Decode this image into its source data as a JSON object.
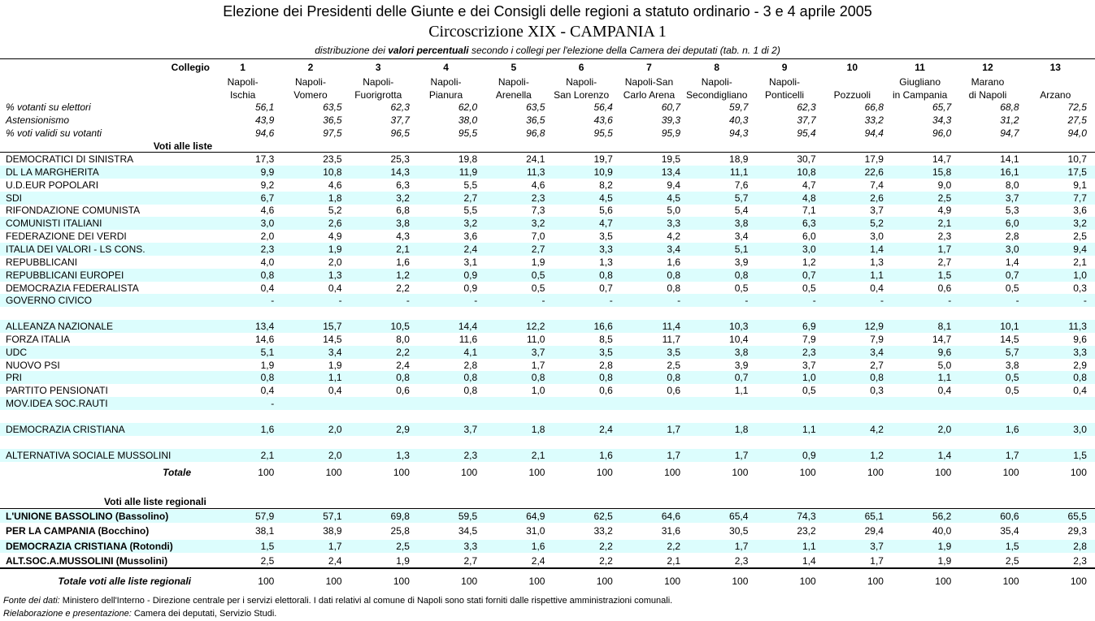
{
  "header": {
    "title": "Elezione dei Presidenti delle Giunte e dei Consigli delle regioni a statuto ordinario - 3 e 4 aprile 2005",
    "subtitle": "Circoscrizione XIX - CAMPANIA  1",
    "note": [
      "distribuzione dei ",
      "valori percentuali",
      " secondo i collegi per l'elezione della Camera dei deputati (tab. n. 1 di 2)"
    ]
  },
  "table": {
    "collegio_label": "Collegio",
    "columns": [
      {
        "number": "1",
        "name": [
          "Napoli-",
          "Ischia"
        ]
      },
      {
        "number": "2",
        "name": [
          "Napoli-",
          "Vomero"
        ]
      },
      {
        "number": "3",
        "name": [
          "Napoli-",
          "Fuorigrotta"
        ]
      },
      {
        "number": "4",
        "name": [
          "Napoli-",
          "Pianura"
        ]
      },
      {
        "number": "5",
        "name": [
          "Napoli-",
          "Arenella"
        ]
      },
      {
        "number": "6",
        "name": [
          "Napoli-",
          "San Lorenzo"
        ]
      },
      {
        "number": "7",
        "name": [
          "Napoli-San",
          "Carlo Arena"
        ]
      },
      {
        "number": "8",
        "name": [
          "Napoli-",
          "Secondigliano"
        ]
      },
      {
        "number": "9",
        "name": [
          "Napoli-",
          "Ponticelli"
        ]
      },
      {
        "number": "10",
        "name": [
          null,
          "Pozzuoli"
        ]
      },
      {
        "number": "11",
        "name": [
          "Giugliano",
          "in Campania"
        ]
      },
      {
        "number": "12",
        "name": [
          "Marano",
          "di Napoli"
        ]
      },
      {
        "number": "13",
        "name": [
          null,
          "Arzano"
        ]
      }
    ],
    "turnout": [
      {
        "label": "% votanti su elettori",
        "values": [
          "56,1",
          "63,5",
          "62,3",
          "62,0",
          "63,5",
          "56,4",
          "60,7",
          "59,7",
          "62,3",
          "66,8",
          "65,7",
          "68,8",
          "72,5"
        ]
      },
      {
        "label": "Astensionismo",
        "values": [
          "43,9",
          "36,5",
          "37,7",
          "38,0",
          "36,5",
          "43,6",
          "39,3",
          "40,3",
          "37,7",
          "33,2",
          "34,3",
          "31,2",
          "27,5"
        ]
      },
      {
        "label": "% voti validi su votanti",
        "values": [
          "94,6",
          "97,5",
          "96,5",
          "95,5",
          "96,8",
          "95,5",
          "95,9",
          "94,3",
          "95,4",
          "94,4",
          "96,0",
          "94,7",
          "94,0"
        ]
      }
    ],
    "lists_heading": "Voti alle liste",
    "list_groups": [
      [
        {
          "label": "DEMOCRATICI DI SINISTRA",
          "values": [
            "17,3",
            "23,5",
            "25,3",
            "19,8",
            "24,1",
            "19,7",
            "19,5",
            "18,9",
            "30,7",
            "17,9",
            "14,7",
            "14,1",
            "10,7"
          ]
        },
        {
          "label": "DL LA MARGHERITA",
          "values": [
            "9,9",
            "10,8",
            "14,3",
            "11,9",
            "11,3",
            "10,9",
            "13,4",
            "11,1",
            "10,8",
            "22,6",
            "15,8",
            "16,1",
            "17,5"
          ]
        },
        {
          "label": "U.D.EUR POPOLARI",
          "values": [
            "9,2",
            "4,6",
            "6,3",
            "5,5",
            "4,6",
            "8,2",
            "9,4",
            "7,6",
            "4,7",
            "7,4",
            "9,0",
            "8,0",
            "9,1"
          ]
        },
        {
          "label": "SDI",
          "values": [
            "6,7",
            "1,8",
            "3,2",
            "2,7",
            "2,3",
            "4,5",
            "4,5",
            "5,7",
            "4,8",
            "2,6",
            "2,5",
            "3,7",
            "7,7"
          ]
        },
        {
          "label": "RIFONDAZIONE COMUNISTA",
          "values": [
            "4,6",
            "5,2",
            "6,8",
            "5,5",
            "7,3",
            "5,6",
            "5,0",
            "5,4",
            "7,1",
            "3,7",
            "4,9",
            "5,3",
            "3,6"
          ]
        },
        {
          "label": "COMUNISTI ITALIANI",
          "values": [
            "3,0",
            "2,6",
            "3,8",
            "3,2",
            "3,2",
            "4,7",
            "3,3",
            "3,8",
            "6,3",
            "5,2",
            "2,1",
            "6,0",
            "3,2"
          ]
        },
        {
          "label": "FEDERAZIONE DEI VERDI",
          "values": [
            "2,0",
            "4,9",
            "4,3",
            "3,6",
            "7,0",
            "3,5",
            "4,2",
            "3,4",
            "6,0",
            "3,0",
            "2,3",
            "2,8",
            "2,5"
          ]
        },
        {
          "label": "ITALIA DEI VALORI - LS CONS.",
          "values": [
            "2,3",
            "1,9",
            "2,1",
            "2,4",
            "2,7",
            "3,3",
            "3,4",
            "5,1",
            "3,0",
            "1,4",
            "1,7",
            "3,0",
            "9,4"
          ]
        },
        {
          "label": "REPUBBLICANI",
          "values": [
            "4,0",
            "2,0",
            "1,6",
            "3,1",
            "1,9",
            "1,3",
            "1,6",
            "3,9",
            "1,2",
            "1,3",
            "2,7",
            "1,4",
            "2,1"
          ]
        },
        {
          "label": "REPUBBLICANI EUROPEI",
          "values": [
            "0,8",
            "1,3",
            "1,2",
            "0,9",
            "0,5",
            "0,8",
            "0,8",
            "0,8",
            "0,7",
            "1,1",
            "1,5",
            "0,7",
            "1,0"
          ]
        },
        {
          "label": "DEMOCRAZIA FEDERALISTA",
          "values": [
            "0,4",
            "0,4",
            "2,2",
            "0,9",
            "0,5",
            "0,7",
            "0,8",
            "0,5",
            "0,5",
            "0,4",
            "0,6",
            "0,5",
            "0,3"
          ]
        },
        {
          "label": "GOVERNO CIVICO",
          "values": [
            "-",
            "-",
            "-",
            "-",
            "-",
            "-",
            "-",
            "-",
            "-",
            "-",
            "-",
            "-",
            "-"
          ]
        }
      ],
      [
        {
          "label": "ALLEANZA NAZIONALE",
          "values": [
            "13,4",
            "15,7",
            "10,5",
            "14,4",
            "12,2",
            "16,6",
            "11,4",
            "10,3",
            "6,9",
            "12,9",
            "8,1",
            "10,1",
            "11,3"
          ]
        },
        {
          "label": "FORZA ITALIA",
          "values": [
            "14,6",
            "14,5",
            "8,0",
            "11,6",
            "11,0",
            "8,5",
            "11,7",
            "10,4",
            "7,9",
            "7,9",
            "14,7",
            "14,5",
            "9,6"
          ]
        },
        {
          "label": "UDC",
          "values": [
            "5,1",
            "3,4",
            "2,2",
            "4,1",
            "3,7",
            "3,5",
            "3,5",
            "3,8",
            "2,3",
            "3,4",
            "9,6",
            "5,7",
            "3,3"
          ]
        },
        {
          "label": "NUOVO PSI",
          "values": [
            "1,9",
            "1,9",
            "2,4",
            "2,8",
            "1,7",
            "2,8",
            "2,5",
            "3,9",
            "3,7",
            "2,7",
            "5,0",
            "3,8",
            "2,9"
          ]
        },
        {
          "label": "PRI",
          "values": [
            "0,8",
            "1,1",
            "0,8",
            "0,8",
            "0,8",
            "0,8",
            "0,8",
            "0,7",
            "1,0",
            "0,8",
            "1,1",
            "0,5",
            "0,8"
          ]
        },
        {
          "label": "PARTITO PENSIONATI",
          "values": [
            "0,4",
            "0,4",
            "0,6",
            "0,8",
            "1,0",
            "0,6",
            "0,6",
            "1,1",
            "0,5",
            "0,3",
            "0,4",
            "0,5",
            "0,4"
          ]
        },
        {
          "label": "MOV.IDEA SOC.RAUTI",
          "values": [
            "-",
            null,
            null,
            null,
            null,
            null,
            null,
            null,
            null,
            null,
            null,
            null,
            null
          ]
        }
      ],
      [
        {
          "label": "DEMOCRAZIA CRISTIANA",
          "values": [
            "1,6",
            "2,0",
            "2,9",
            "3,7",
            "1,8",
            "2,4",
            "1,7",
            "1,8",
            "1,1",
            "4,2",
            "2,0",
            "1,6",
            "3,0"
          ]
        }
      ],
      [
        {
          "label": "ALTERNATIVA SOCIALE MUSSOLINI",
          "values": [
            "2,1",
            "2,0",
            "1,3",
            "2,3",
            "2,1",
            "1,6",
            "1,7",
            "1,7",
            "0,9",
            "1,2",
            "1,4",
            "1,7",
            "1,5"
          ]
        }
      ]
    ],
    "lists_total": {
      "label": "Totale",
      "values": [
        "100",
        "100",
        "100",
        "100",
        "100",
        "100",
        "100",
        "100",
        "100",
        "100",
        "100",
        "100",
        "100"
      ]
    },
    "regional_heading": "Voti alle liste regionali",
    "regional_rows": [
      {
        "label": "L'UNIONE BASSOLINO (Bassolino)",
        "values": [
          "57,9",
          "57,1",
          "69,8",
          "59,5",
          "64,9",
          "62,5",
          "64,6",
          "65,4",
          "74,3",
          "65,1",
          "56,2",
          "60,6",
          "65,5"
        ]
      },
      {
        "label": "PER LA CAMPANIA (Bocchino)",
        "values": [
          "38,1",
          "38,9",
          "25,8",
          "34,5",
          "31,0",
          "33,2",
          "31,6",
          "30,5",
          "23,2",
          "29,4",
          "40,0",
          "35,4",
          "29,3"
        ]
      },
      {
        "label": "DEMOCRAZIA CRISTIANA (Rotondi)",
        "values": [
          "1,5",
          "1,7",
          "2,5",
          "3,3",
          "1,6",
          "2,2",
          "2,2",
          "1,7",
          "1,1",
          "3,7",
          "1,9",
          "1,5",
          "2,8"
        ]
      },
      {
        "label": "ALT.SOC.A.MUSSOLINI (Mussolini)",
        "values": [
          "2,5",
          "2,4",
          "1,9",
          "2,7",
          "2,4",
          "2,2",
          "2,1",
          "2,3",
          "1,4",
          "1,7",
          "1,9",
          "2,5",
          "2,3"
        ]
      }
    ],
    "regional_total": {
      "label": "Totale voti alle liste regionali",
      "values": [
        "100",
        "100",
        "100",
        "100",
        "100",
        "100",
        "100",
        "100",
        "100",
        "100",
        "100",
        "100",
        "100"
      ]
    }
  },
  "footer": [
    {
      "label": "Fonte dei dati:",
      "text": " Ministero dell'Interno - Direzione centrale per i servizi elettorali. I dati relativi al comune di Napoli sono stati forniti dalle rispettive amministrazioni comunali."
    },
    {
      "label": "Rielaborazione e presentazione:",
      "text": " Camera dei deputati, Servizio Studi."
    }
  ]
}
